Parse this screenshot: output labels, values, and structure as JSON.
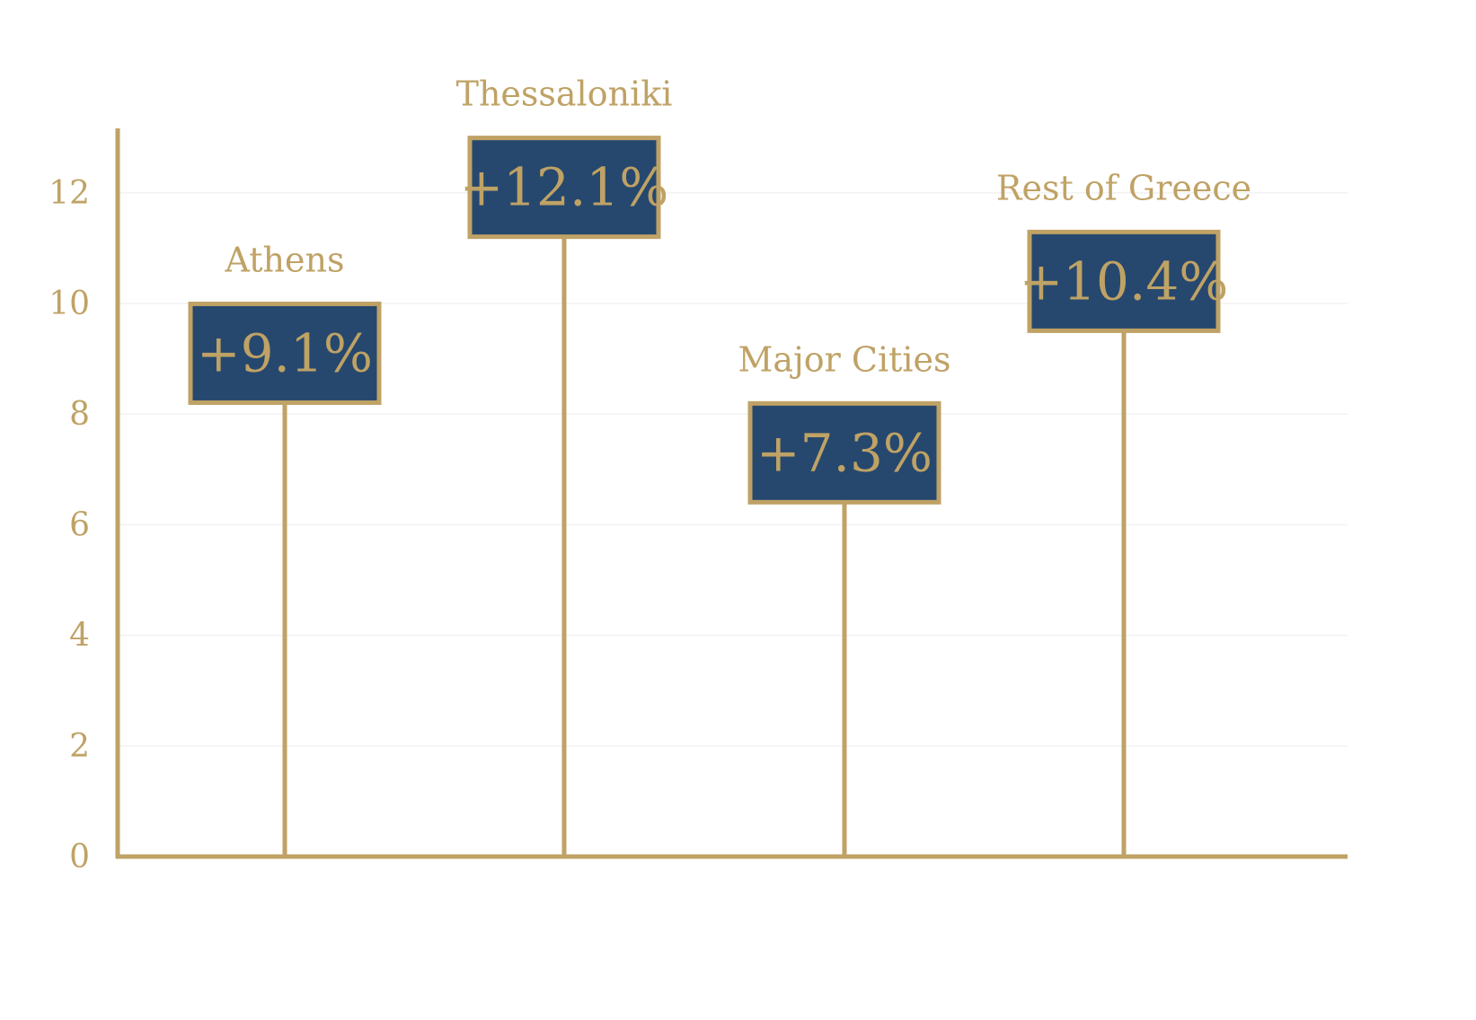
{
  "chart_data": {
    "type": "bar",
    "categories": [
      "Athens",
      "Thessaloniki",
      "Major Cities",
      "Rest of Greece"
    ],
    "values": [
      9.1,
      12.1,
      7.3,
      10.4
    ],
    "value_labels": [
      "+9.1%",
      "+12.1%",
      "+7.3%",
      "+10.4%"
    ],
    "y_ticks": [
      "0",
      "2",
      "4",
      "6",
      "8",
      "10",
      "12"
    ],
    "ylim": [
      0,
      13.2
    ],
    "grid": true,
    "colors": {
      "accent": "#bfa265",
      "box_fill": "#26486e",
      "grid": "#f2f2f2"
    }
  }
}
